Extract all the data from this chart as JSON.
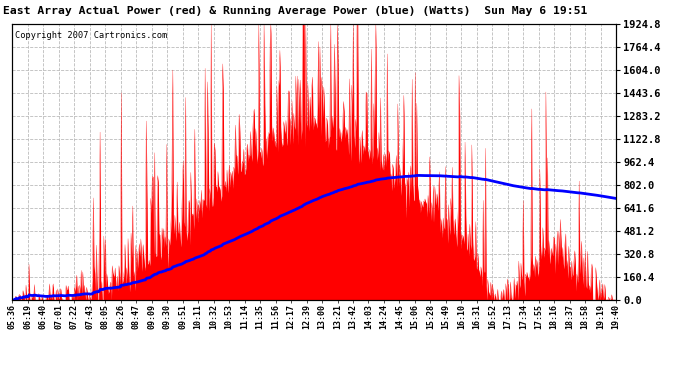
{
  "title": "East Array Actual Power (red) & Running Average Power (blue) (Watts)  Sun May 6 19:51",
  "copyright": "Copyright 2007 Cartronics.com",
  "ylabel_right_values": [
    0.0,
    160.4,
    320.8,
    481.2,
    641.6,
    802.0,
    962.4,
    1122.8,
    1283.2,
    1443.6,
    1604.0,
    1764.4,
    1924.8
  ],
  "ymax": 1924.8,
  "ymin": 0.0,
  "bg_color": "#ffffff",
  "plot_bg_color": "#ffffff",
  "grid_color": "#bbbbbb",
  "actual_color": "#ff0000",
  "avg_color": "#0000ff",
  "x_tick_labels": [
    "05:36",
    "06:19",
    "06:40",
    "07:01",
    "07:22",
    "07:43",
    "08:05",
    "08:26",
    "08:47",
    "09:09",
    "09:30",
    "09:51",
    "10:11",
    "10:32",
    "10:53",
    "11:14",
    "11:35",
    "11:56",
    "12:17",
    "12:39",
    "13:00",
    "13:21",
    "13:42",
    "14:03",
    "14:24",
    "14:45",
    "15:06",
    "15:28",
    "15:49",
    "16:10",
    "16:31",
    "16:52",
    "17:13",
    "17:34",
    "17:55",
    "18:16",
    "18:37",
    "18:58",
    "19:19",
    "19:40"
  ],
  "num_points": 800,
  "seed": 12345
}
